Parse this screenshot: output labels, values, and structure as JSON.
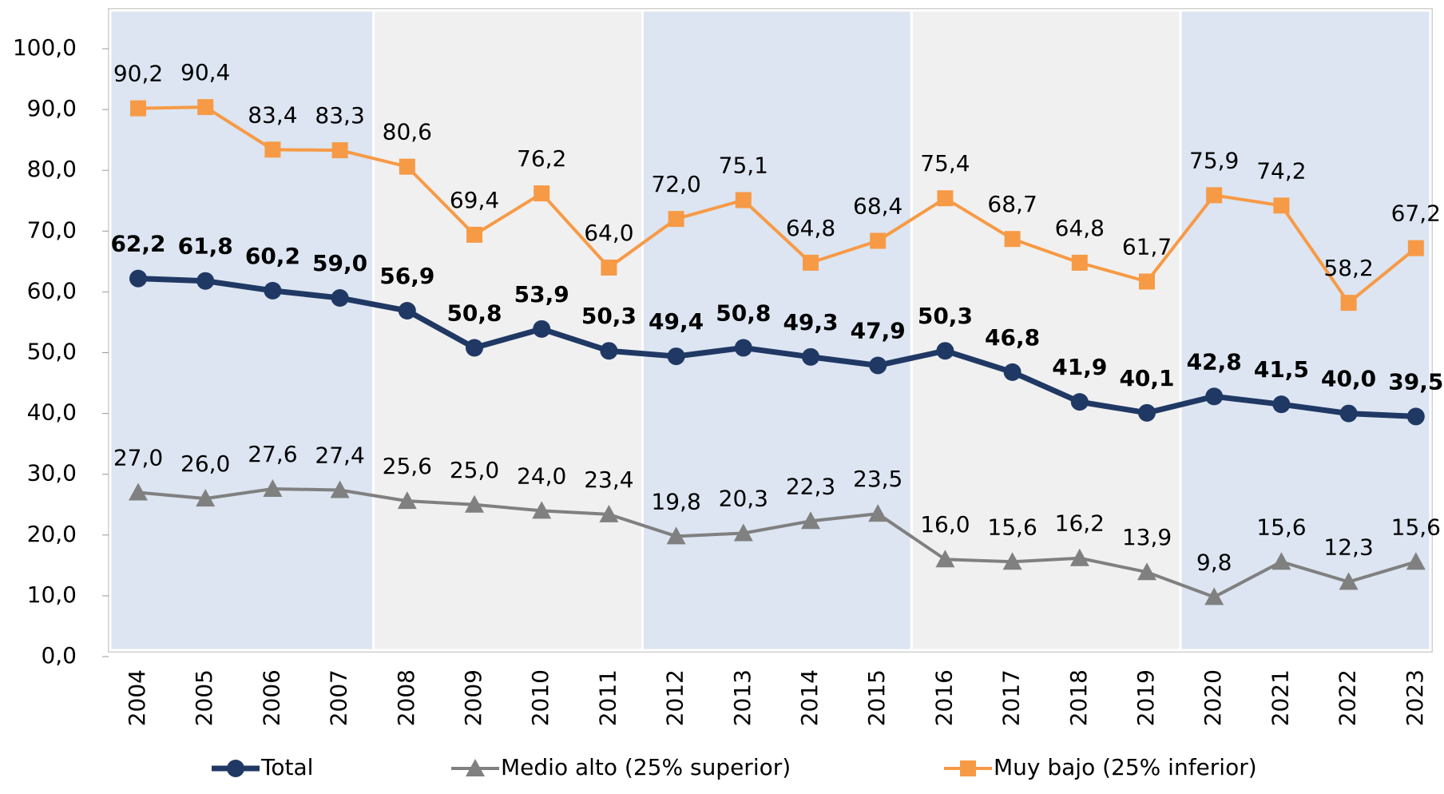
{
  "chart_data": {
    "type": "line",
    "categories": [
      "2004",
      "2005",
      "2006",
      "2007",
      "2008",
      "2009",
      "2010",
      "2011",
      "2012",
      "2013",
      "2014",
      "2015",
      "2016",
      "2017",
      "2018",
      "2019",
      "2020",
      "2021",
      "2022",
      "2023"
    ],
    "ylim": [
      0,
      100
    ],
    "yticks": [
      {
        "value": 0,
        "label": "0,0"
      },
      {
        "value": 10,
        "label": "10,0"
      },
      {
        "value": 20,
        "label": "20,0"
      },
      {
        "value": 30,
        "label": "30,0"
      },
      {
        "value": 40,
        "label": "40,0"
      },
      {
        "value": 50,
        "label": "50,0"
      },
      {
        "value": 60,
        "label": "60,0"
      },
      {
        "value": 70,
        "label": "70,0"
      },
      {
        "value": 80,
        "label": "80,0"
      },
      {
        "value": 90,
        "label": "90,0"
      },
      {
        "value": 100,
        "label": "100,0"
      }
    ],
    "legend": "bottom",
    "series": [
      {
        "name": "Total",
        "color": "#203864",
        "marker": "circle",
        "bold_labels": true,
        "values": [
          62.2,
          61.8,
          60.2,
          59.0,
          56.9,
          50.8,
          53.9,
          50.3,
          49.4,
          50.8,
          49.3,
          47.9,
          50.3,
          46.8,
          41.9,
          40.1,
          42.8,
          41.5,
          40.0,
          39.5
        ],
        "value_labels": [
          "62,2",
          "61,8",
          "60,2",
          "59,0",
          "56,9",
          "50,8",
          "53,9",
          "50,3",
          "49,4",
          "50,8",
          "49,3",
          "47,9",
          "50,3",
          "46,8",
          "41,9",
          "40,1",
          "42,8",
          "41,5",
          "40,0",
          "39,5"
        ]
      },
      {
        "name": "Medio alto (25% superior)",
        "color": "#808080",
        "marker": "triangle",
        "values": [
          27.0,
          26.0,
          27.6,
          27.4,
          25.6,
          25.0,
          24.0,
          23.4,
          19.8,
          20.3,
          22.3,
          23.5,
          16.0,
          15.6,
          16.2,
          13.9,
          9.8,
          15.6,
          12.3,
          15.6
        ],
        "value_labels": [
          "27,0",
          "26,0",
          "27,6",
          "27,4",
          "25,6",
          "25,0",
          "24,0",
          "23,4",
          "19,8",
          "20,3",
          "22,3",
          "23,5",
          "16,0",
          "15,6",
          "16,2",
          "13,9",
          "9,8",
          "15,6",
          "12,3",
          "15,6"
        ]
      },
      {
        "name": "Muy bajo (25% inferior)",
        "color": "#f79a46",
        "marker": "square",
        "values": [
          90.2,
          90.4,
          83.4,
          83.3,
          80.6,
          69.4,
          76.2,
          64.0,
          72.0,
          75.1,
          64.8,
          68.4,
          75.4,
          68.7,
          64.8,
          61.7,
          75.9,
          74.2,
          58.2,
          67.2
        ],
        "value_labels": [
          "90,2",
          "90,4",
          "83,4",
          "83,3",
          "80,6",
          "69,4",
          "76,2",
          "64,0",
          "72,0",
          "75,1",
          "64,8",
          "68,4",
          "75,4",
          "68,7",
          "64,8",
          "61,7",
          "75,9",
          "74,2",
          "58,2",
          "67,2"
        ]
      }
    ]
  }
}
